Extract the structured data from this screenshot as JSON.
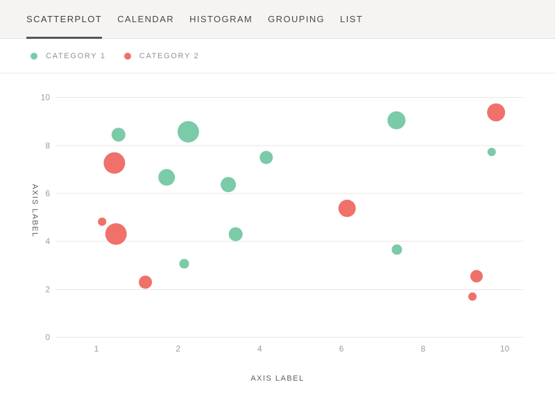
{
  "tabs": {
    "items": [
      {
        "label": "SCATTERPLOT",
        "active": true
      },
      {
        "label": "CALENDAR",
        "active": false
      },
      {
        "label": "HISTOGRAM",
        "active": false
      },
      {
        "label": "GROUPING",
        "active": false
      },
      {
        "label": "LIST",
        "active": false
      }
    ]
  },
  "legend": {
    "items": [
      {
        "label": "CATEGORY 1",
        "color": "#7bcaa8"
      },
      {
        "label": "CATEGORY 2",
        "color": "#f0706a"
      }
    ]
  },
  "chart_data": {
    "type": "scatter",
    "title": "",
    "xlabel": "AXIS LABEL",
    "ylabel": "AXIS LABEL",
    "x_ticks": [
      1,
      2,
      4,
      6,
      8,
      10
    ],
    "x_tick_layout": "evenly-spaced",
    "y_ticks": [
      0,
      2,
      4,
      6,
      8,
      10
    ],
    "ylim": [
      0,
      10
    ],
    "grid": "horizontal-only",
    "legend_position": "top-left",
    "accent_colors": {
      "category1": "#7bcaa8",
      "category2": "#f0706a"
    },
    "series": [
      {
        "name": "CATEGORY 1",
        "color": "#7bcaa8",
        "points": [
          {
            "x": 1.27,
            "y": 8.45,
            "size": 10
          },
          {
            "x": 2.25,
            "y": 8.57,
            "size": 15.5
          },
          {
            "x": 1.86,
            "y": 6.67,
            "size": 12
          },
          {
            "x": 3.23,
            "y": 6.37,
            "size": 11
          },
          {
            "x": 4.16,
            "y": 7.5,
            "size": 9.5
          },
          {
            "x": 3.41,
            "y": 4.3,
            "size": 10
          },
          {
            "x": 2.15,
            "y": 3.07,
            "size": 7
          },
          {
            "x": 7.35,
            "y": 9.05,
            "size": 13
          },
          {
            "x": 7.36,
            "y": 3.66,
            "size": 7.5
          },
          {
            "x": 9.68,
            "y": 7.73,
            "size": 6
          }
        ]
      },
      {
        "name": "CATEGORY 2",
        "color": "#f0706a",
        "points": [
          {
            "x": 1.22,
            "y": 7.27,
            "size": 15.5
          },
          {
            "x": 1.07,
            "y": 4.82,
            "size": 6
          },
          {
            "x": 1.24,
            "y": 4.31,
            "size": 15.5
          },
          {
            "x": 1.6,
            "y": 2.3,
            "size": 9.5
          },
          {
            "x": 6.14,
            "y": 5.38,
            "size": 12.5
          },
          {
            "x": 9.31,
            "y": 2.55,
            "size": 9
          },
          {
            "x": 9.21,
            "y": 1.7,
            "size": 6
          },
          {
            "x": 9.79,
            "y": 9.38,
            "size": 13
          }
        ]
      }
    ]
  }
}
